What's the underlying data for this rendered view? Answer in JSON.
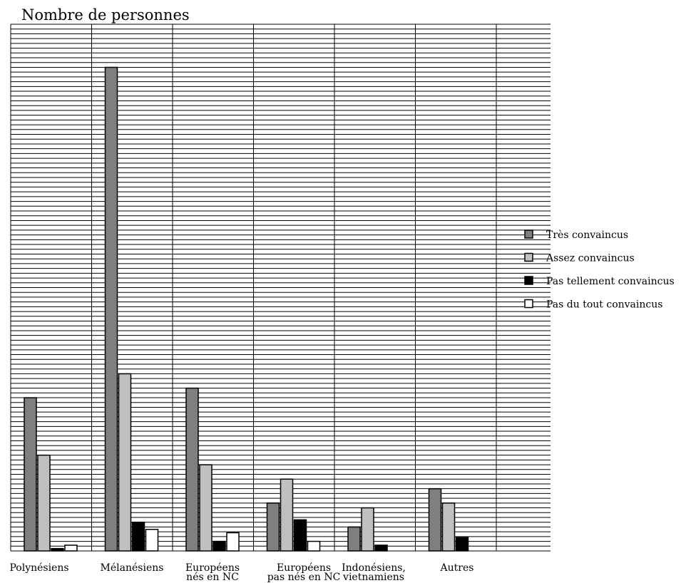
{
  "chart_data": {
    "type": "bar",
    "ylabel": "Nombre de personnes",
    "xlabel": "",
    "title": "",
    "ylim": [
      0,
      110
    ],
    "grid": true,
    "legend_position": "right",
    "categories": [
      [
        "Polynésiens"
      ],
      [
        "Mélanésiens"
      ],
      [
        "Européens",
        "nés en NC"
      ],
      [
        "Européens",
        "pas nés en NC"
      ],
      [
        "Indonésiens,",
        "vietnamiens"
      ],
      [
        "Autres"
      ]
    ],
    "series": [
      {
        "name": "Très convaincus",
        "color": "#7f7f7f",
        "values": [
          32,
          101,
          34,
          10,
          5,
          13
        ]
      },
      {
        "name": "Assez convaincus",
        "color": "#c0c0c0",
        "values": [
          20,
          37,
          18,
          15,
          9,
          10
        ]
      },
      {
        "name": "Pas tellement convaincus",
        "color": "#000000",
        "values": [
          0.5,
          6,
          2,
          6.5,
          1.2,
          2.8
        ]
      },
      {
        "name": "Pas du tout convaincus",
        "color": "#ffffff",
        "values": [
          1.2,
          4.5,
          3.8,
          2,
          0,
          0
        ]
      }
    ]
  }
}
